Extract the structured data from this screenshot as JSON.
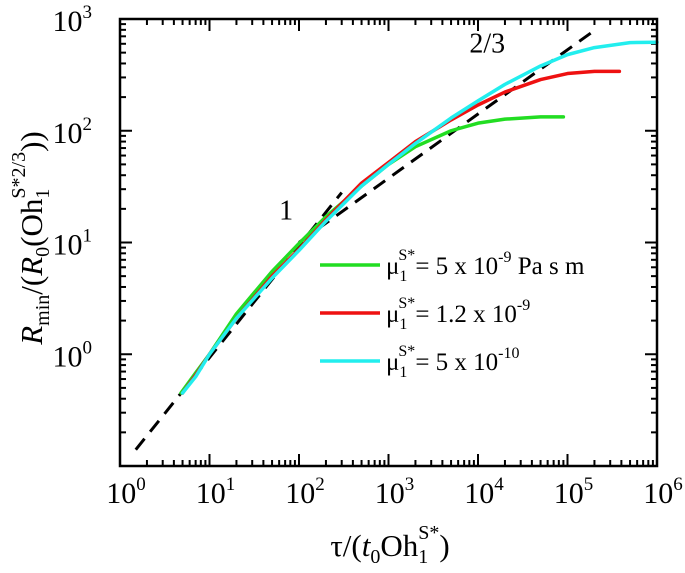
{
  "chart_data": {
    "type": "line",
    "xscale": "log",
    "yscale": "log",
    "xlim": [
      1,
      1000000
    ],
    "ylim": [
      0.1,
      1000
    ],
    "grid": false,
    "legend_position": "center-right",
    "xlabel": {
      "main": "τ/(",
      "italic": "t",
      "sub0": "0",
      "after": "Oh",
      "sub1": "1",
      "sup": "S*",
      "close": ")"
    },
    "ylabel": {
      "italic": "R",
      "sub": "min",
      "mid1": "/(",
      "italic2": "R",
      "sub2": "0",
      "mid2": "(Oh",
      "sub3": "1",
      "sup": "S*",
      "pow": "2/3",
      "close": "))"
    },
    "x_ticks": [
      {
        "value": 1,
        "base": "10",
        "exp": "0"
      },
      {
        "value": 10,
        "base": "10",
        "exp": "1"
      },
      {
        "value": 100,
        "base": "10",
        "exp": "2"
      },
      {
        "value": 1000,
        "base": "10",
        "exp": "3"
      },
      {
        "value": 10000,
        "base": "10",
        "exp": "4"
      },
      {
        "value": 100000,
        "base": "10",
        "exp": "5"
      },
      {
        "value": 1000000,
        "base": "10",
        "exp": "6"
      }
    ],
    "y_ticks": [
      {
        "value": 1,
        "base": "10",
        "exp": "0"
      },
      {
        "value": 10,
        "base": "10",
        "exp": "1"
      },
      {
        "value": 100,
        "base": "10",
        "exp": "2"
      },
      {
        "value": 1000,
        "base": "10",
        "exp": "3"
      }
    ],
    "series": [
      {
        "name": "μ1S* = 5 x 10^-9 Pa s m",
        "color": "#22dd22",
        "x": [
          4.8,
          7,
          10,
          20,
          50,
          100,
          200,
          500,
          1000,
          2000,
          5000,
          10000,
          20000,
          50000,
          90000
        ],
        "y": [
          0.45,
          0.68,
          1.0,
          2.3,
          5.5,
          9.8,
          17,
          32,
          50,
          72,
          100,
          117,
          127,
          133,
          133
        ]
      },
      {
        "name": "μ1S* = 1.2 x 10^-9",
        "color": "#ee1111",
        "x": [
          5,
          7,
          10,
          20,
          50,
          100,
          200,
          500,
          1000,
          2000,
          5000,
          10000,
          20000,
          50000,
          100000,
          200000,
          380000
        ],
        "y": [
          0.45,
          0.65,
          1.0,
          2.1,
          5.0,
          8.7,
          16,
          34,
          52,
          80,
          125,
          170,
          222,
          287,
          325,
          340,
          340
        ]
      },
      {
        "name": "μ1S* = 5 x 10^-10",
        "color": "#22eeee",
        "x": [
          5,
          7,
          10,
          20,
          50,
          100,
          200,
          500,
          1000,
          2000,
          5000,
          10000,
          20000,
          50000,
          100000,
          200000,
          500000,
          1000000
        ],
        "y": [
          0.45,
          0.63,
          1.0,
          2.1,
          4.8,
          8.5,
          15.5,
          32,
          50,
          77,
          130,
          185,
          260,
          380,
          480,
          555,
          615,
          620
        ]
      }
    ],
    "reference_lines": [
      {
        "label": "1",
        "slope": 1,
        "x": [
          1.5,
          300
        ],
        "y": [
          0.14,
          28
        ]
      },
      {
        "label": "2/3",
        "slope": 0.6667,
        "x": [
          100,
          200000
        ],
        "y": [
          10,
          790
        ]
      }
    ],
    "legend": {
      "mu": "μ",
      "sub": "1",
      "sup": "S*",
      "entries": [
        {
          "eq": "= 5 x 10",
          "exp": "-9",
          "unit": " Pa s m"
        },
        {
          "eq": "= 1.2 x 10",
          "exp": "-9",
          "unit": ""
        },
        {
          "eq": "= 5 x 10",
          "exp": "-10",
          "unit": ""
        }
      ]
    }
  }
}
